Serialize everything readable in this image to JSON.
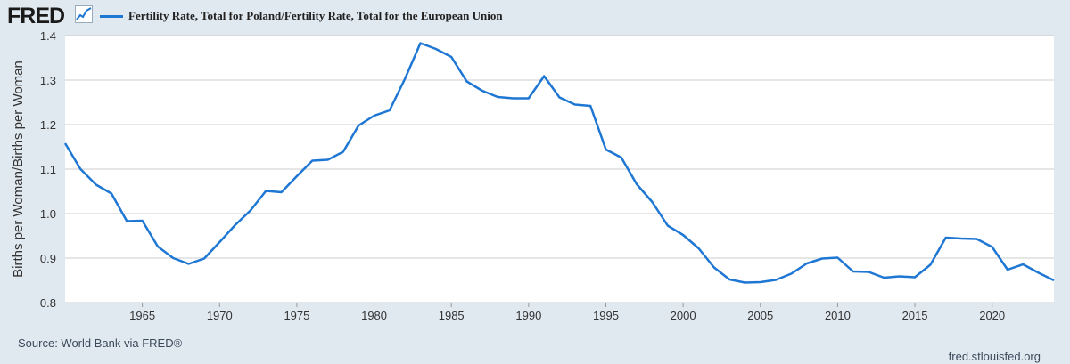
{
  "header": {
    "logo_text": "FRED",
    "logo_icon": "chart-line-icon",
    "legend_label": "Fertility Rate, Total for Poland/Fertility Rate, Total for the European Union"
  },
  "footer": {
    "source": "Source: World Bank via FRED®",
    "site": "fred.stlouisfed.org"
  },
  "colors": {
    "series": "#1f77d4",
    "background": "#e1e9f0",
    "plot_bg": "#ffffff",
    "grid": "#cccccc"
  },
  "chart_data": {
    "type": "line",
    "title": "",
    "xlabel": "",
    "ylabel": "Births per Woman/Births per Woman",
    "xlim": [
      1960,
      2024
    ],
    "ylim": [
      0.8,
      1.4
    ],
    "x_ticks": [
      1965,
      1970,
      1975,
      1980,
      1985,
      1990,
      1995,
      2000,
      2005,
      2010,
      2015,
      2020
    ],
    "y_ticks": [
      0.8,
      0.9,
      1.0,
      1.1,
      1.2,
      1.3,
      1.4
    ],
    "grid": true,
    "legend": "top-left",
    "series": [
      {
        "name": "Fertility Rate, Total for Poland/Fertility Rate, Total for the European Union",
        "x": [
          1960,
          1961,
          1962,
          1963,
          1964,
          1965,
          1966,
          1967,
          1968,
          1969,
          1970,
          1971,
          1972,
          1973,
          1974,
          1975,
          1976,
          1977,
          1978,
          1979,
          1980,
          1981,
          1982,
          1983,
          1984,
          1985,
          1986,
          1987,
          1988,
          1989,
          1990,
          1991,
          1992,
          1993,
          1994,
          1995,
          1996,
          1997,
          1998,
          1999,
          2000,
          2001,
          2002,
          2003,
          2004,
          2005,
          2006,
          2007,
          2008,
          2009,
          2010,
          2011,
          2012,
          2013,
          2014,
          2015,
          2016,
          2017,
          2018,
          2019,
          2020,
          2021,
          2022,
          2023,
          2024
        ],
        "values": [
          1.158,
          1.1,
          1.065,
          1.045,
          0.983,
          0.984,
          0.926,
          0.9,
          0.887,
          0.899,
          0.936,
          0.974,
          1.007,
          1.051,
          1.048,
          1.084,
          1.119,
          1.121,
          1.139,
          1.198,
          1.22,
          1.232,
          1.303,
          1.383,
          1.37,
          1.352,
          1.297,
          1.276,
          1.262,
          1.259,
          1.259,
          1.309,
          1.261,
          1.245,
          1.242,
          1.144,
          1.126,
          1.066,
          1.026,
          0.973,
          0.952,
          0.922,
          0.879,
          0.852,
          0.845,
          0.846,
          0.851,
          0.865,
          0.888,
          0.899,
          0.901,
          0.87,
          0.869,
          0.856,
          0.859,
          0.857,
          0.885,
          0.946,
          0.944,
          0.943,
          0.925,
          0.874,
          0.886,
          0.867,
          0.85
        ]
      }
    ]
  }
}
